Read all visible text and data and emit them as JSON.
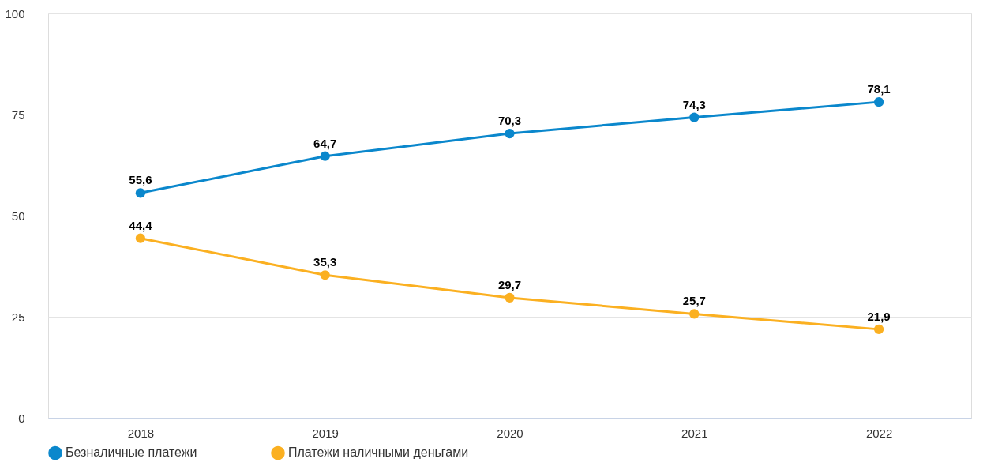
{
  "chart_data": {
    "type": "line",
    "categories": [
      "2018",
      "2019",
      "2020",
      "2021",
      "2022"
    ],
    "series": [
      {
        "name": "Безналичные платежи",
        "color": "#0a87cc",
        "values": [
          55.6,
          64.7,
          70.3,
          74.3,
          78.1
        ],
        "value_labels": [
          "55,6",
          "64,7",
          "70,3",
          "74,3",
          "78,1"
        ]
      },
      {
        "name": "Платежи наличными деньгами",
        "color": "#fbb021",
        "values": [
          44.4,
          35.3,
          29.7,
          25.7,
          21.9
        ],
        "value_labels": [
          "44,4",
          "35,3",
          "29,7",
          "25,7",
          "21,9"
        ]
      }
    ],
    "ylim": [
      0,
      100
    ],
    "yticks": [
      0,
      25,
      50,
      75,
      100
    ],
    "grid": "y",
    "legend": "bottom left",
    "marker": "circle",
    "line_style": "solid"
  }
}
